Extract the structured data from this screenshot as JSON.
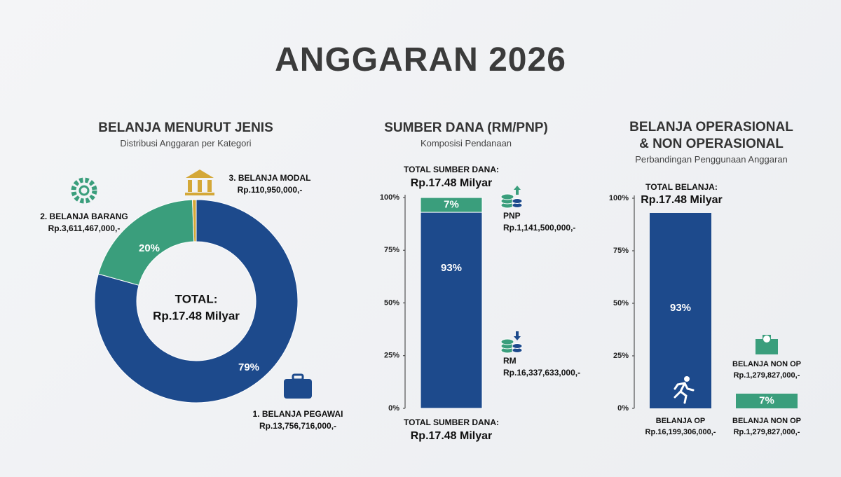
{
  "title": "ANGGARAN 2026",
  "chart_data": [
    {
      "type": "pie",
      "donut": true,
      "title": "BELANJA MENURUT JENIS",
      "subtitle": "Distribusi Anggaran per Kategori",
      "center_title": "TOTAL:",
      "center_value": "Rp.17.48 Milyar",
      "categories": [
        "1. BELANJA PEGAWAI",
        "2. BELANJA BARANG",
        "3. BELANJA MODAL"
      ],
      "amounts": [
        "Rp.13,756,716,000,-",
        "Rp.3,611,467,000,-",
        "Rp.110,950,000,-"
      ],
      "values": [
        79,
        20,
        0.6
      ],
      "value_labels": [
        "79%",
        "20%",
        null
      ],
      "colors": [
        "#1d4a8c",
        "#3a9e7c",
        "#d4a838"
      ]
    },
    {
      "type": "bar",
      "stacked": true,
      "title": "SUMBER DANA (RM/PNP)",
      "subtitle": "Komposisi Pendanaan",
      "total_title": "TOTAL SUMBER DANA:",
      "total_value": "Rp.17.48 Milyar",
      "series": [
        {
          "name": "RM",
          "color": "#1d4a8c",
          "values": [
            93
          ],
          "value_labels": [
            "93%"
          ],
          "amount": "Rp.16,337,633,000,-"
        },
        {
          "name": "PNP",
          "color": "#3a9e7c",
          "values": [
            7
          ],
          "value_labels": [
            "7%"
          ],
          "amount": "Rp.1,141,500,000,-"
        }
      ],
      "ylim": [
        0,
        100
      ],
      "yticks": [
        {
          "value": 0,
          "label": "0%"
        },
        {
          "value": 25,
          "label": "25%"
        },
        {
          "value": 50,
          "label": "50%"
        },
        {
          "value": 75,
          "label": "75%"
        },
        {
          "value": 100,
          "label": "100%"
        }
      ]
    },
    {
      "type": "bar",
      "title": "BELANJA OPERASIONAL & NON OPERASIONAL",
      "subtitle": "Perbandingan Penggunaan Anggaran",
      "total_title": "TOTAL BELANJA:",
      "total_value": "Rp.17.48 Milyar",
      "categories": [
        "BELANJA OP",
        "BELANJA NON OP"
      ],
      "amounts": [
        "Rp.16,199,306,000,-",
        "Rp.1,279,827,000,-"
      ],
      "values": [
        93,
        7
      ],
      "value_labels": [
        "93%",
        "7%"
      ],
      "colors": [
        "#1d4a8c",
        "#3a9e7c"
      ],
      "ylim": [
        0,
        100
      ],
      "yticks": [
        {
          "value": 0,
          "label": "0%"
        },
        {
          "value": 25,
          "label": "25%"
        },
        {
          "value": 50,
          "label": "50%"
        },
        {
          "value": 75,
          "label": "75%"
        },
        {
          "value": 100,
          "label": "100%"
        }
      ]
    }
  ]
}
